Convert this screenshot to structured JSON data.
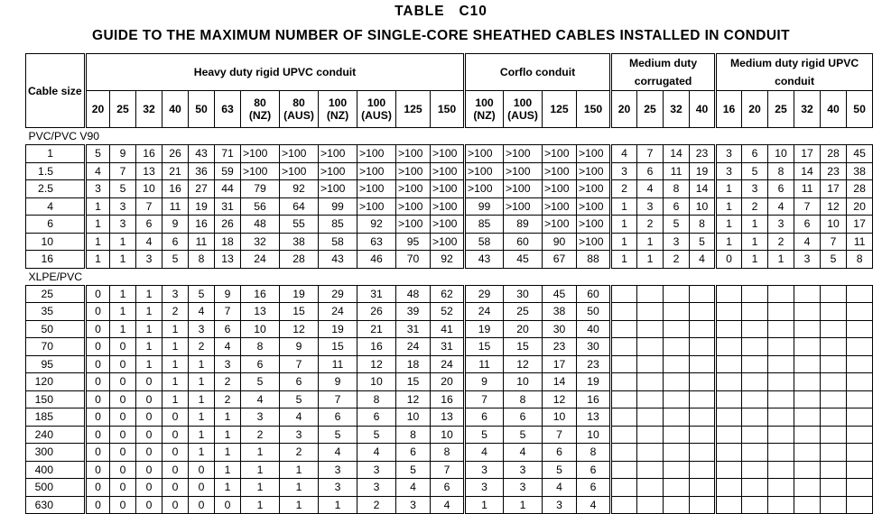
{
  "title": "TABLE   C10",
  "subtitle": "GUIDE TO THE MAXIMUM NUMBER OF SINGLE-CORE SHEATHED CABLES INSTALLED IN CONDUIT",
  "header": {
    "cable_size": "Cable size",
    "groups": [
      {
        "label": "Heavy duty rigid UPVC conduit",
        "sizes": [
          [
            "20"
          ],
          [
            "25"
          ],
          [
            "32"
          ],
          [
            "40"
          ],
          [
            "50"
          ],
          [
            "63"
          ],
          [
            "80",
            "(NZ)"
          ],
          [
            "80",
            "(AUS)"
          ],
          [
            "100",
            "(NZ)"
          ],
          [
            "100",
            "(AUS)"
          ],
          [
            "125"
          ],
          [
            "150"
          ]
        ]
      },
      {
        "label": "Corflo conduit",
        "sizes": [
          [
            "100",
            "(NZ)"
          ],
          [
            "100",
            "(AUS)"
          ],
          [
            "125"
          ],
          [
            "150"
          ]
        ]
      },
      {
        "label": "Medium duty corrugated",
        "sizes": [
          [
            "20"
          ],
          [
            "25"
          ],
          [
            "32"
          ],
          [
            "40"
          ]
        ]
      },
      {
        "label": "Medium duty rigid UPVC conduit",
        "sizes": [
          [
            "16"
          ],
          [
            "20"
          ],
          [
            "25"
          ],
          [
            "32"
          ],
          [
            "40"
          ],
          [
            "50"
          ]
        ]
      }
    ]
  },
  "sections": [
    {
      "label": "PVC/PVC V90",
      "rows": [
        {
          "size": "1",
          "values": [
            "5",
            "9",
            "16",
            "26",
            "43",
            "71",
            ">100",
            ">100",
            ">100",
            ">100",
            ">100",
            ">100",
            ">100",
            ">100",
            ">100",
            ">100",
            "4",
            "7",
            "14",
            "23",
            "3",
            "6",
            "10",
            "17",
            "28",
            "45"
          ]
        },
        {
          "size": "1.5",
          "values": [
            "4",
            "7",
            "13",
            "21",
            "36",
            "59",
            ">100",
            ">100",
            ">100",
            ">100",
            ">100",
            ">100",
            ">100",
            ">100",
            ">100",
            ">100",
            "3",
            "6",
            "11",
            "19",
            "3",
            "5",
            "8",
            "14",
            "23",
            "38"
          ]
        },
        {
          "size": "2.5",
          "values": [
            "3",
            "5",
            "10",
            "16",
            "27",
            "44",
            "79",
            "92",
            ">100",
            ">100",
            ">100",
            ">100",
            ">100",
            ">100",
            ">100",
            ">100",
            "2",
            "4",
            "8",
            "14",
            "1",
            "3",
            "6",
            "11",
            "17",
            "28"
          ]
        },
        {
          "size": "4",
          "values": [
            "1",
            "3",
            "7",
            "11",
            "19",
            "31",
            "56",
            "64",
            "99",
            ">100",
            ">100",
            ">100",
            "99",
            ">100",
            ">100",
            ">100",
            "1",
            "3",
            "6",
            "10",
            "1",
            "2",
            "4",
            "7",
            "12",
            "20"
          ]
        },
        {
          "size": "6",
          "values": [
            "1",
            "3",
            "6",
            "9",
            "16",
            "26",
            "48",
            "55",
            "85",
            "92",
            ">100",
            ">100",
            "85",
            "89",
            ">100",
            ">100",
            "1",
            "2",
            "5",
            "8",
            "1",
            "1",
            "3",
            "6",
            "10",
            "17"
          ]
        },
        {
          "size": "10",
          "values": [
            "1",
            "1",
            "4",
            "6",
            "11",
            "18",
            "32",
            "38",
            "58",
            "63",
            "95",
            ">100",
            "58",
            "60",
            "90",
            ">100",
            "1",
            "1",
            "3",
            "5",
            "1",
            "1",
            "2",
            "4",
            "7",
            "11"
          ]
        },
        {
          "size": "16",
          "values": [
            "1",
            "1",
            "3",
            "5",
            "8",
            "13",
            "24",
            "28",
            "43",
            "46",
            "70",
            "92",
            "43",
            "45",
            "67",
            "88",
            "1",
            "1",
            "2",
            "4",
            "0",
            "1",
            "1",
            "3",
            "5",
            "8"
          ]
        }
      ]
    },
    {
      "label": "XLPE/PVC",
      "rows": [
        {
          "size": "25",
          "values": [
            "0",
            "1",
            "1",
            "3",
            "5",
            "9",
            "16",
            "19",
            "29",
            "31",
            "48",
            "62",
            "29",
            "30",
            "45",
            "60",
            "",
            "",
            "",
            "",
            "",
            "",
            "",
            "",
            "",
            ""
          ]
        },
        {
          "size": "35",
          "values": [
            "0",
            "1",
            "1",
            "2",
            "4",
            "7",
            "13",
            "15",
            "24",
            "26",
            "39",
            "52",
            "24",
            "25",
            "38",
            "50",
            "",
            "",
            "",
            "",
            "",
            "",
            "",
            "",
            "",
            ""
          ]
        },
        {
          "size": "50",
          "values": [
            "0",
            "1",
            "1",
            "1",
            "3",
            "6",
            "10",
            "12",
            "19",
            "21",
            "31",
            "41",
            "19",
            "20",
            "30",
            "40",
            "",
            "",
            "",
            "",
            "",
            "",
            "",
            "",
            "",
            ""
          ]
        },
        {
          "size": "70",
          "values": [
            "0",
            "0",
            "1",
            "1",
            "2",
            "4",
            "8",
            "9",
            "15",
            "16",
            "24",
            "31",
            "15",
            "15",
            "23",
            "30",
            "",
            "",
            "",
            "",
            "",
            "",
            "",
            "",
            "",
            ""
          ]
        },
        {
          "size": "95",
          "values": [
            "0",
            "0",
            "1",
            "1",
            "1",
            "3",
            "6",
            "7",
            "11",
            "12",
            "18",
            "24",
            "11",
            "12",
            "17",
            "23",
            "",
            "",
            "",
            "",
            "",
            "",
            "",
            "",
            "",
            ""
          ]
        },
        {
          "size": "120",
          "values": [
            "0",
            "0",
            "0",
            "1",
            "1",
            "2",
            "5",
            "6",
            "9",
            "10",
            "15",
            "20",
            "9",
            "10",
            "14",
            "19",
            "",
            "",
            "",
            "",
            "",
            "",
            "",
            "",
            "",
            ""
          ]
        },
        {
          "size": "150",
          "values": [
            "0",
            "0",
            "0",
            "1",
            "1",
            "2",
            "4",
            "5",
            "7",
            "8",
            "12",
            "16",
            "7",
            "8",
            "12",
            "16",
            "",
            "",
            "",
            "",
            "",
            "",
            "",
            "",
            "",
            ""
          ]
        },
        {
          "size": "185",
          "values": [
            "0",
            "0",
            "0",
            "0",
            "1",
            "1",
            "3",
            "4",
            "6",
            "6",
            "10",
            "13",
            "6",
            "6",
            "10",
            "13",
            "",
            "",
            "",
            "",
            "",
            "",
            "",
            "",
            "",
            ""
          ]
        },
        {
          "size": "240",
          "values": [
            "0",
            "0",
            "0",
            "0",
            "1",
            "1",
            "2",
            "3",
            "5",
            "5",
            "8",
            "10",
            "5",
            "5",
            "7",
            "10",
            "",
            "",
            "",
            "",
            "",
            "",
            "",
            "",
            "",
            ""
          ]
        },
        {
          "size": "300",
          "values": [
            "0",
            "0",
            "0",
            "0",
            "1",
            "1",
            "1",
            "2",
            "4",
            "4",
            "6",
            "8",
            "4",
            "4",
            "6",
            "8",
            "",
            "",
            "",
            "",
            "",
            "",
            "",
            "",
            "",
            ""
          ]
        },
        {
          "size": "400",
          "values": [
            "0",
            "0",
            "0",
            "0",
            "0",
            "1",
            "1",
            "1",
            "3",
            "3",
            "5",
            "7",
            "3",
            "3",
            "5",
            "6",
            "",
            "",
            "",
            "",
            "",
            "",
            "",
            "",
            "",
            ""
          ]
        },
        {
          "size": "500",
          "values": [
            "0",
            "0",
            "0",
            "0",
            "0",
            "1",
            "1",
            "1",
            "3",
            "3",
            "4",
            "6",
            "3",
            "3",
            "4",
            "6",
            "",
            "",
            "",
            "",
            "",
            "",
            "",
            "",
            "",
            ""
          ]
        },
        {
          "size": "630",
          "values": [
            "0",
            "0",
            "0",
            "0",
            "0",
            "0",
            "1",
            "1",
            "1",
            "2",
            "3",
            "4",
            "1",
            "1",
            "3",
            "4",
            "",
            "",
            "",
            "",
            "",
            "",
            "",
            "",
            "",
            ""
          ]
        }
      ]
    }
  ]
}
